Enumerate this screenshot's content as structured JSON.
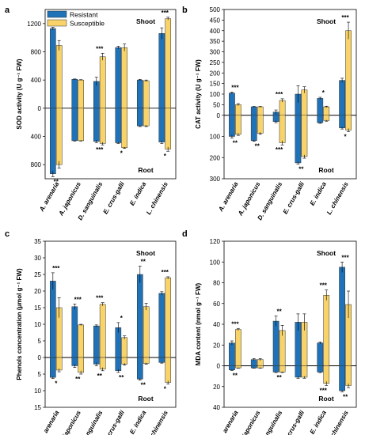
{
  "colors": {
    "resistant": "#1f72b8",
    "susceptible": "#f8d36a",
    "axis": "#000000"
  },
  "legend": {
    "resistant": "Resistant",
    "susceptible": "Susceptible"
  },
  "region_labels": {
    "top": "Shoot",
    "bottom": "Root"
  },
  "chart_data": [
    {
      "panel": "a",
      "type": "bar",
      "ylabel": "SOD activity (U g⁻¹ FW)",
      "categories": [
        "A. arenaria",
        "A. japonicus",
        "D. sanguinalis",
        "E. crus-galli",
        "E. indica",
        "L. chinensis"
      ],
      "ylim": [
        -1000,
        1400
      ],
      "y_ticks": [
        -800,
        -400,
        0,
        400,
        800,
        1200
      ],
      "y_tick_labels": [
        "800",
        "400",
        "0",
        "400",
        "800",
        "1200"
      ],
      "legend_placement": "top-left",
      "series": [
        {
          "name": "Resistant",
          "shoot": [
            1130,
            410,
            380,
            860,
            400,
            1060
          ],
          "shoot_err": [
            20,
            5,
            60,
            20,
            10,
            80
          ],
          "root": [
            930,
            460,
            470,
            490,
            250,
            480
          ],
          "root_err": [
            40,
            5,
            20,
            10,
            10,
            20
          ]
        },
        {
          "name": "Susceptible",
          "shoot": [
            890,
            400,
            730,
            860,
            390,
            1270
          ],
          "shoot_err": [
            70,
            5,
            50,
            50,
            10,
            20
          ],
          "root": [
            800,
            460,
            500,
            560,
            250,
            580
          ],
          "root_err": [
            50,
            5,
            20,
            10,
            10,
            30
          ]
        }
      ],
      "annotations": {
        "shoot": [
          "***",
          "",
          "***",
          "",
          "",
          "***"
        ],
        "root": [
          "**",
          "",
          "***",
          "*",
          "",
          "*"
        ]
      }
    },
    {
      "panel": "b",
      "type": "bar",
      "ylabel": "CAT activity (U g⁻¹ FW)",
      "categories": [
        "A. arenaria",
        "A. japonicus",
        "D. sanguinalis",
        "E. crus-galli",
        "E. indica",
        "L. chinensis"
      ],
      "ylim": [
        -300,
        500
      ],
      "y_ticks": [
        -300,
        -200,
        -100,
        0,
        50,
        100,
        150,
        200,
        250,
        300,
        350,
        400,
        450,
        500
      ],
      "y_tick_labels": [
        "300",
        "200",
        "100",
        "0",
        "50",
        "100",
        "150",
        "200",
        "250",
        "300",
        "350",
        "400",
        "450",
        "500"
      ],
      "series": [
        {
          "name": "Resistant",
          "shoot": [
            105,
            40,
            15,
            100,
            80,
            165
          ],
          "shoot_err": [
            5,
            2,
            10,
            40,
            5,
            10
          ],
          "root": [
            100,
            120,
            30,
            225,
            35,
            60
          ],
          "root_err": [
            8,
            3,
            5,
            5,
            3,
            5
          ]
        },
        {
          "name": "Susceptible",
          "shoot": [
            50,
            40,
            70,
            120,
            40,
            400
          ],
          "shoot_err": [
            5,
            2,
            8,
            15,
            3,
            40
          ],
          "root": [
            90,
            85,
            130,
            195,
            25,
            70
          ],
          "root_err": [
            5,
            5,
            10,
            8,
            3,
            8
          ]
        }
      ],
      "annotations": {
        "shoot": [
          "***",
          "",
          "***",
          "",
          "*",
          "***"
        ],
        "root": [
          "**",
          "**",
          "***",
          "**",
          "",
          "*"
        ]
      }
    },
    {
      "panel": "c",
      "type": "bar",
      "ylabel": "Phenols concentration (µmol g⁻¹ FW)",
      "categories": [
        "A. arenaria",
        "A. japonicus",
        "D. sanguinalis",
        "E. crus-galli",
        "E. indica",
        "L. chinensis"
      ],
      "ylim": [
        -15,
        35
      ],
      "y_ticks": [
        -15,
        -10,
        -5,
        0,
        5,
        10,
        15,
        20,
        25,
        30,
        35
      ],
      "y_tick_labels": [
        "15",
        "10",
        "5",
        "0",
        "5",
        "10",
        "15",
        "20",
        "25",
        "30",
        "35"
      ],
      "series": [
        {
          "name": "Resistant",
          "shoot": [
            23,
            15.3,
            9.5,
            9,
            25,
            19.3
          ],
          "shoot_err": [
            2.5,
            0.8,
            0.3,
            1.5,
            2.5,
            0.5
          ],
          "root": [
            6,
            2.5,
            2,
            4,
            6.5,
            1.5
          ],
          "root_err": [
            0.3,
            0.5,
            0.5,
            0.5,
            0.3,
            0.2
          ]
        },
        {
          "name": "Susceptible",
          "shoot": [
            15,
            9.8,
            16,
            6,
            15.3,
            24
          ],
          "shoot_err": [
            3,
            0.2,
            0.5,
            0.5,
            1,
            0.3
          ],
          "root": [
            3.8,
            4.5,
            3.5,
            2,
            1.8,
            7.5
          ],
          "root_err": [
            0.5,
            0.5,
            0.5,
            0.3,
            0.2,
            0.5
          ]
        }
      ],
      "annotations": {
        "shoot": [
          "***",
          "***",
          "***",
          "*",
          "**",
          "***"
        ],
        "root": [
          "*",
          "**",
          "**",
          "**",
          "**",
          "*"
        ]
      }
    },
    {
      "panel": "d",
      "type": "bar",
      "ylabel": "MDA content (nmol g⁻¹ FW)",
      "categories": [
        "A. arenaria",
        "A. japonicus",
        "D. sanguinalis",
        "E. crus-galli",
        "E. indica",
        "L. chinensis"
      ],
      "ylim": [
        -40,
        120
      ],
      "y_ticks": [
        -40,
        -20,
        0,
        20,
        40,
        60,
        80,
        100,
        120
      ],
      "y_tick_labels": [
        "40",
        "20",
        "0",
        "20",
        "40",
        "60",
        "80",
        "100",
        "120"
      ],
      "series": [
        {
          "name": "Resistant",
          "shoot": [
            22,
            6,
            43,
            42,
            22,
            95
          ],
          "shoot_err": [
            2,
            1,
            5,
            8,
            1,
            5
          ],
          "root": [
            4,
            2,
            6,
            11,
            6,
            24
          ],
          "root_err": [
            0.5,
            0.3,
            0.5,
            1,
            0.5,
            1
          ]
        },
        {
          "name": "Susceptible",
          "shoot": [
            35,
            6,
            34,
            42,
            68,
            59
          ],
          "shoot_err": [
            1,
            1,
            5,
            8,
            5,
            13
          ],
          "root": [
            2,
            2,
            6,
            11,
            17,
            19
          ],
          "root_err": [
            0.3,
            0.3,
            0.5,
            1,
            2,
            2
          ]
        }
      ],
      "annotations": {
        "shoot": [
          "***",
          "",
          "**",
          "",
          "***",
          "***"
        ],
        "root": [
          "**",
          "",
          "**",
          "",
          "***",
          "**"
        ]
      }
    }
  ]
}
